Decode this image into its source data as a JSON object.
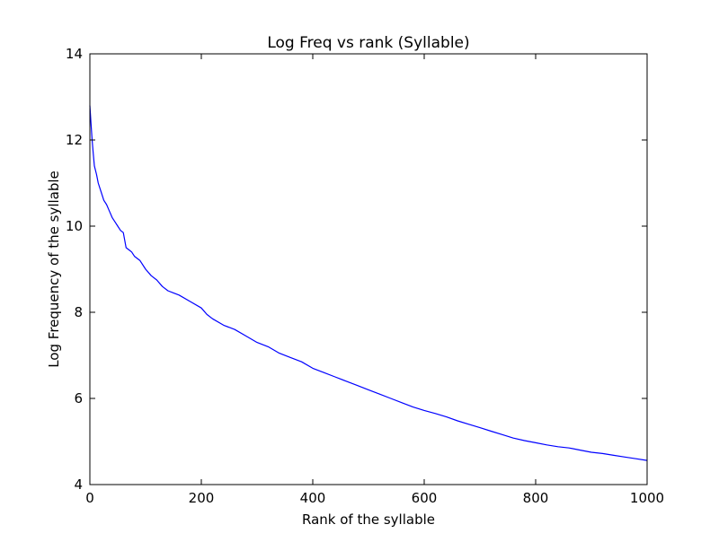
{
  "chart_data": {
    "type": "line",
    "title": "Log Freq vs rank (Syllable)",
    "xlabel": "Rank of the syllable",
    "ylabel": "Log Frequency of the syllable",
    "xlim": [
      0,
      1000
    ],
    "ylim": [
      4,
      14
    ],
    "xticks": [
      0,
      200,
      400,
      600,
      800,
      1000
    ],
    "yticks": [
      4,
      6,
      8,
      10,
      12,
      14
    ],
    "xtick_labels": [
      "0",
      "200",
      "400",
      "600",
      "800",
      "1000"
    ],
    "ytick_labels": [
      "4",
      "6",
      "8",
      "10",
      "12",
      "14"
    ],
    "grid": false,
    "legend": "none",
    "series": [
      {
        "color": "#0000ff",
        "x": [
          0,
          2,
          4,
          6,
          8,
          10,
          12,
          15,
          20,
          25,
          30,
          35,
          40,
          45,
          50,
          55,
          60,
          65,
          70,
          75,
          80,
          90,
          100,
          110,
          120,
          130,
          140,
          150,
          160,
          180,
          200,
          210,
          220,
          240,
          260,
          280,
          300,
          320,
          340,
          360,
          380,
          400,
          420,
          440,
          460,
          480,
          500,
          520,
          540,
          560,
          580,
          600,
          620,
          640,
          660,
          680,
          700,
          720,
          740,
          760,
          780,
          800,
          820,
          840,
          860,
          880,
          900,
          920,
          940,
          960,
          980,
          1000
        ],
        "y": [
          12.8,
          12.4,
          12.0,
          11.7,
          11.4,
          11.3,
          11.2,
          11.0,
          10.8,
          10.6,
          10.5,
          10.35,
          10.2,
          10.1,
          10.0,
          9.9,
          9.85,
          9.5,
          9.45,
          9.4,
          9.3,
          9.2,
          9.0,
          8.85,
          8.75,
          8.6,
          8.5,
          8.45,
          8.4,
          8.25,
          8.1,
          7.95,
          7.85,
          7.7,
          7.6,
          7.45,
          7.3,
          7.2,
          7.05,
          6.95,
          6.85,
          6.7,
          6.6,
          6.5,
          6.4,
          6.3,
          6.2,
          6.1,
          6.0,
          5.9,
          5.8,
          5.72,
          5.65,
          5.57,
          5.48,
          5.4,
          5.32,
          5.24,
          5.16,
          5.08,
          5.02,
          4.97,
          4.92,
          4.88,
          4.85,
          4.8,
          4.75,
          4.72,
          4.68,
          4.64,
          4.6,
          4.56
        ]
      }
    ]
  }
}
